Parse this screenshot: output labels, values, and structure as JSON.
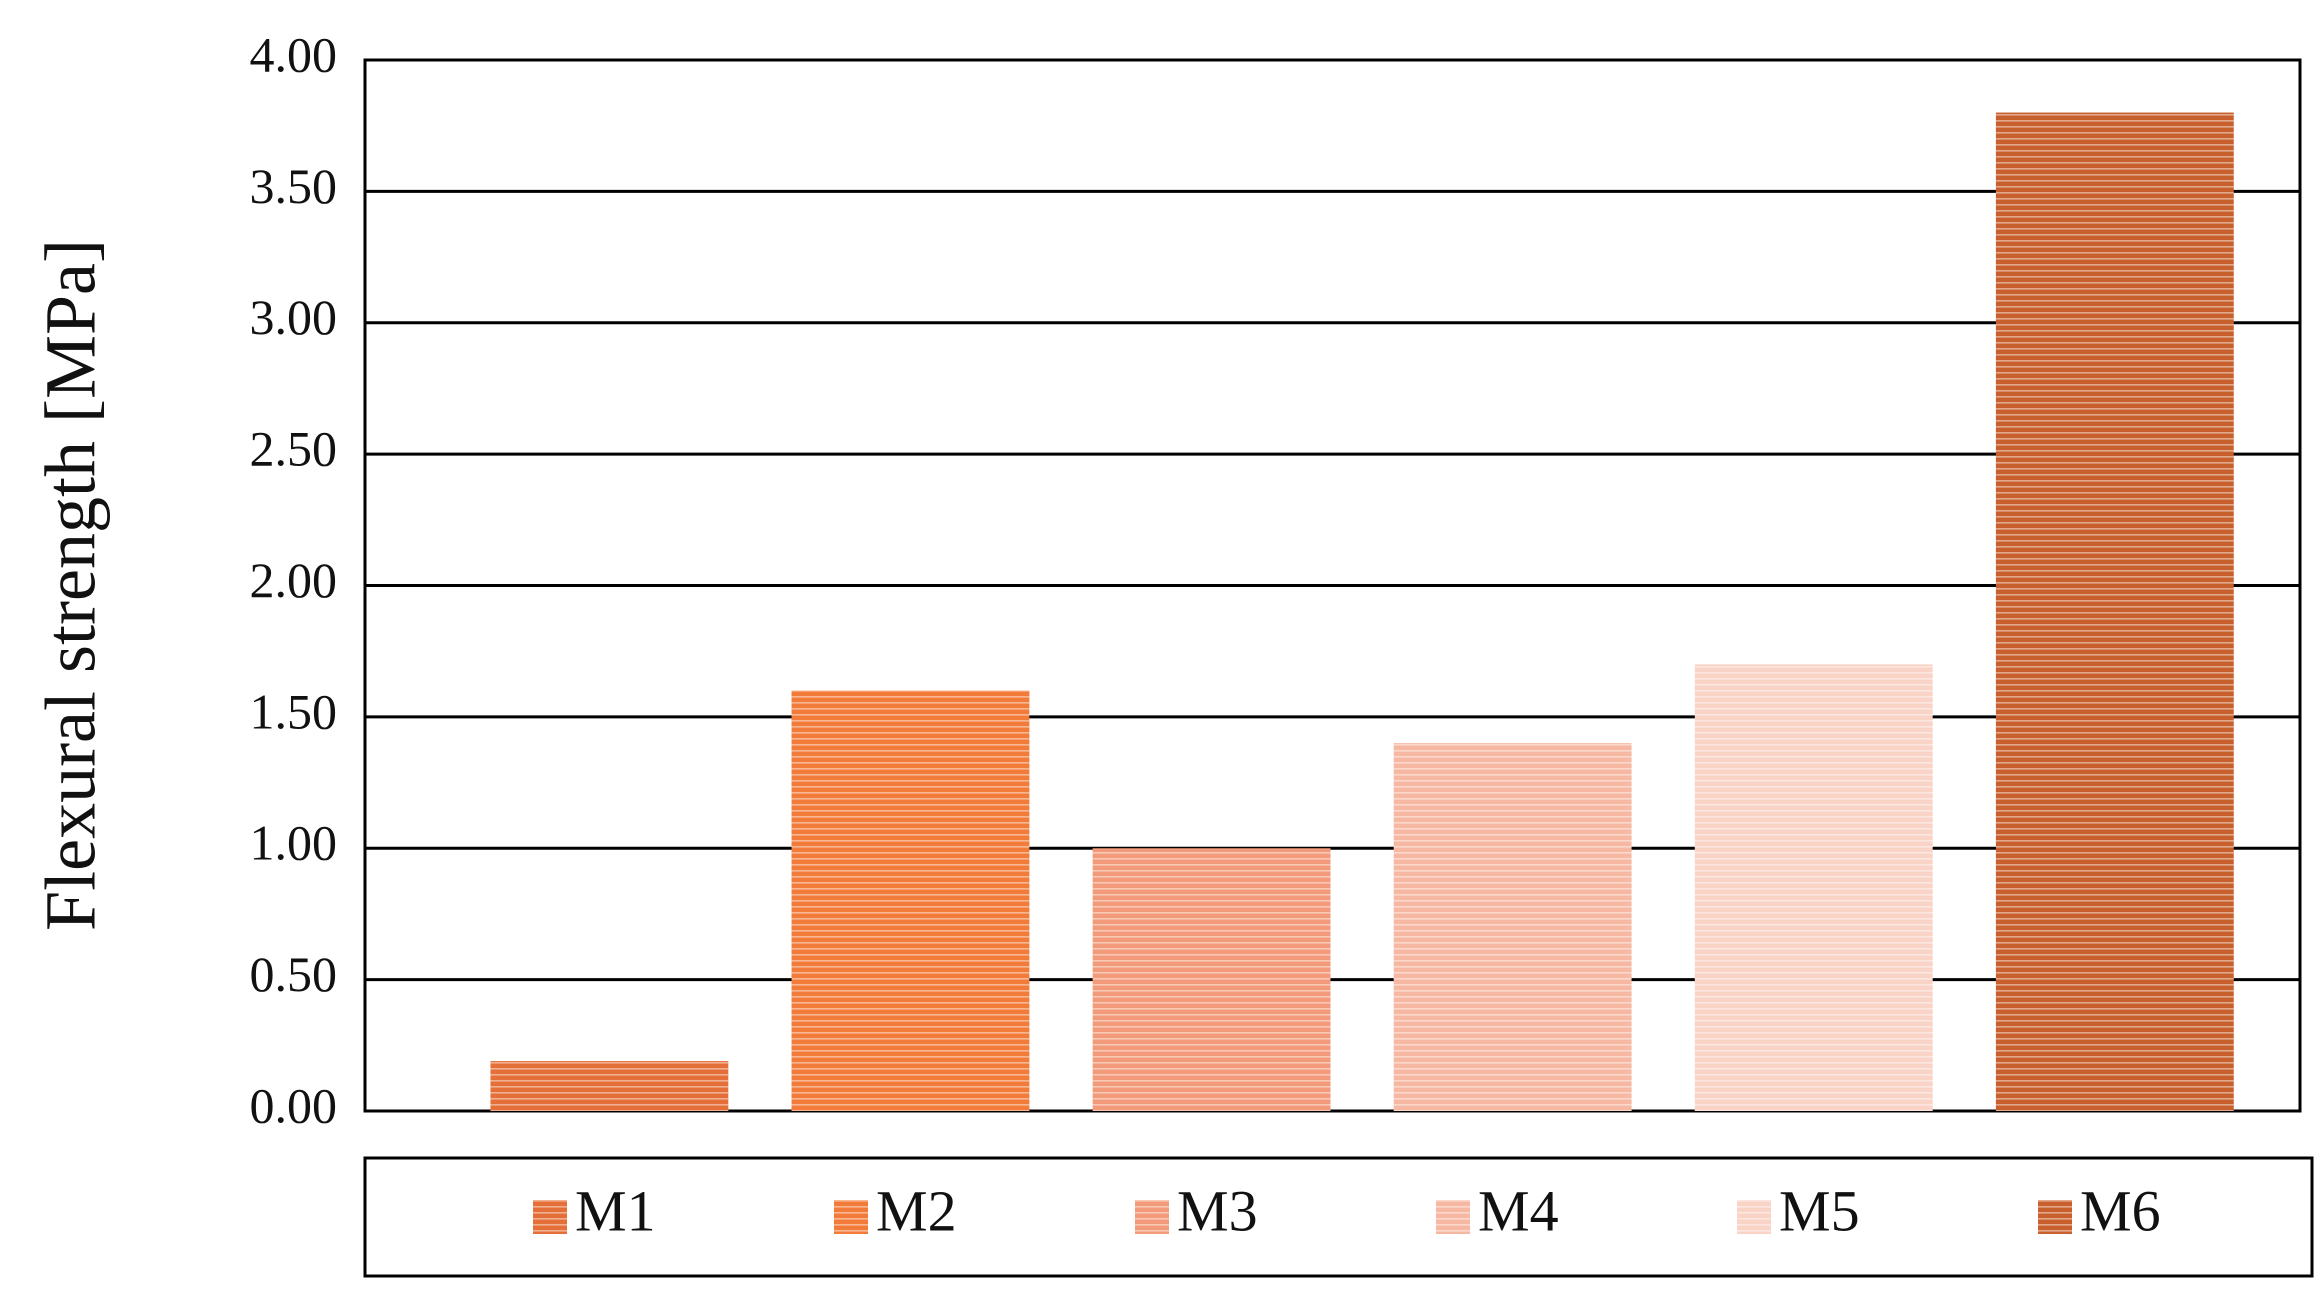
{
  "chart_data": {
    "type": "bar",
    "y_label": "Flexural strength [MPa]",
    "categories": [
      null
    ],
    "series": [
      {
        "name": "M1",
        "color": "#e46f38",
        "values": [
          0.19
        ]
      },
      {
        "name": "M2",
        "color": "#f27b3a",
        "values": [
          1.6
        ]
      },
      {
        "name": "M3",
        "color": "#f39a7a",
        "values": [
          1.0
        ]
      },
      {
        "name": "M4",
        "color": "#f6b8a2",
        "values": [
          1.4
        ]
      },
      {
        "name": "M5",
        "color": "#f9d3c6",
        "values": [
          1.7
        ]
      },
      {
        "name": "M6",
        "color": "#c8602e",
        "values": [
          3.8
        ]
      }
    ],
    "ylim": [
      0,
      4
    ],
    "yticks": [
      {
        "value": 0,
        "label": "0.00"
      },
      {
        "value": 0.5,
        "label": "0.50"
      },
      {
        "value": 1,
        "label": "1.00"
      },
      {
        "value": 1.5,
        "label": "1.50"
      },
      {
        "value": 2,
        "label": "2.00"
      },
      {
        "value": 2.5,
        "label": "2.50"
      },
      {
        "value": 3,
        "label": "3.00"
      },
      {
        "value": 3.5,
        "label": "3.50"
      },
      {
        "value": 4,
        "label": "4.00"
      }
    ],
    "grid": true,
    "legend": "bottom"
  }
}
